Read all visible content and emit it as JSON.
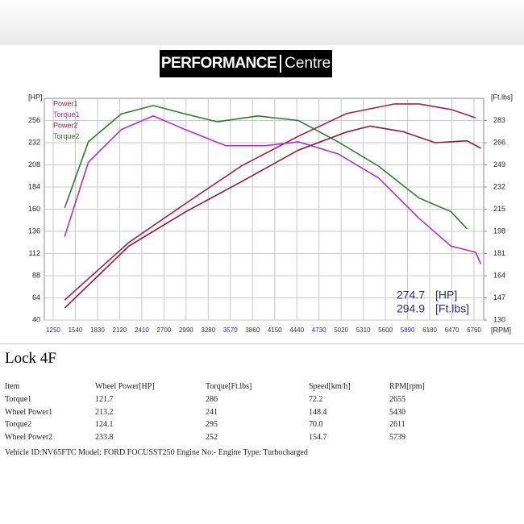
{
  "logo": [
    "PERFORMANCE",
    "Centre"
  ],
  "chart_data": {
    "type": "line",
    "xlabel": "[RPM]",
    "ylabel": "[HP]",
    "y2label": "[Ft.lbs]",
    "xlim": [
      1134,
      6887
    ],
    "ylim": [
      40,
      280
    ],
    "y2lim": [
      130,
      300
    ],
    "xticks": [
      1250,
      1540,
      1830,
      2120,
      2410,
      2700,
      2990,
      3280,
      3570,
      3860,
      4150,
      4440,
      4730,
      5020,
      5310,
      5600,
      5890,
      6180,
      6470,
      6760
    ],
    "yticks": [
      40,
      64,
      88,
      112,
      136,
      160,
      184,
      208,
      232,
      256
    ],
    "y2ticks": [
      130,
      147,
      164,
      181,
      198,
      215,
      232,
      249,
      266,
      283
    ],
    "grid": true,
    "series": [
      {
        "name": "Power1",
        "color": "#a3204c",
        "x": [
          1400,
          2240,
          2980,
          3720,
          4460,
          5090,
          5720,
          6040,
          6460,
          6780
        ],
        "values": [
          61.7,
          124,
          166,
          207,
          239,
          263.5,
          274,
          274,
          268,
          259
        ]
      },
      {
        "name": "Torque1",
        "color": "#b22fc2",
        "axis": "y2",
        "x": [
          1400,
          1710,
          2140,
          2560,
          2980,
          3510,
          4030,
          4460,
          4980,
          5510,
          6040,
          6460,
          6780,
          6850
        ],
        "values": [
          194,
          251,
          276,
          286.5,
          276,
          263.7,
          263.7,
          266.7,
          257.5,
          239,
          208,
          186.7,
          182,
          173
        ]
      },
      {
        "name": "Power2",
        "color": "#8c1a3a",
        "x": [
          1400,
          2240,
          2980,
          3720,
          4460,
          5090,
          5400,
          5830,
          6250,
          6670,
          6850
        ],
        "values": [
          53,
          120,
          157,
          190,
          224,
          243.5,
          250,
          244,
          232,
          234,
          226
        ]
      },
      {
        "name": "Torque2",
        "color": "#2f7a2f",
        "axis": "y2",
        "x": [
          1400,
          1710,
          2140,
          2560,
          2980,
          3400,
          3930,
          4460,
          4980,
          5510,
          6040,
          6460,
          6670
        ],
        "values": [
          216,
          266.7,
          288,
          294.5,
          288,
          282,
          286.5,
          283,
          266.7,
          248,
          223.6,
          213,
          200
        ]
      }
    ],
    "readout": {
      "power": 274.7,
      "power_unit": "[HP]",
      "torque": 294.9,
      "torque_unit": "[Ft.lbs]"
    }
  },
  "report": {
    "title": "Lock 4F",
    "header": [
      "Item",
      "Wheel Power[HP]",
      "Torque[Ft.lbs]",
      "Speed[km/h]",
      "RPM[rpm]"
    ],
    "rows": [
      [
        "Torque1",
        "121.7",
        "286",
        "72.2",
        "2655"
      ],
      [
        "Wheel Power1",
        "213.2",
        "241",
        "148.4",
        "5430"
      ],
      [
        "Torque2",
        "124.1",
        "295",
        "70.0",
        "2611"
      ],
      [
        "Wheel Power2",
        "233.8",
        "252",
        "154.7",
        "5739"
      ]
    ],
    "footer": "Vehicle ID:NV65FTC Model: FORD FOCUSST250 Engine No:- Engine Type: Turbocharged"
  }
}
